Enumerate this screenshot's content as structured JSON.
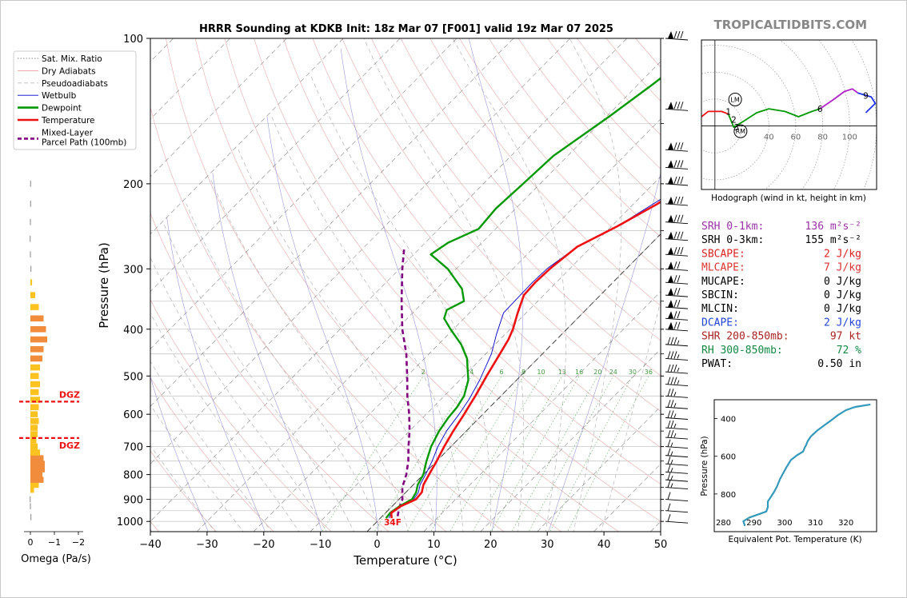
{
  "title": "HRRR Sounding at KDKB Init: 18z Mar 07 [F001] valid 19z Mar 07 2025",
  "brand": "TROPICALTIDBITS.COM",
  "skewt": {
    "xlabel": "Temperature (°C)",
    "ylabel": "Pressure (hPa)",
    "x_ticks": [
      -40,
      -30,
      -20,
      -10,
      0,
      10,
      20,
      30,
      40,
      50
    ],
    "y_ticks": [
      100,
      200,
      300,
      400,
      500,
      600,
      700,
      800,
      900,
      1000
    ],
    "xlim": [
      -40,
      50
    ],
    "ylim": [
      1050,
      100
    ],
    "surface_label": "34F",
    "mixing_ratio_labels": [
      "2",
      "4",
      "6",
      "8",
      "10",
      "13",
      "16",
      "20",
      "24",
      "30",
      "36"
    ]
  },
  "legend": [
    {
      "label": "Sat. Mix. Ratio",
      "color": "#888888",
      "style": "dotted"
    },
    {
      "label": "Dry Adiabats",
      "color": "#e8a0a0",
      "style": "solid"
    },
    {
      "label": "Pseudoadiabats",
      "color": "#bbbbbb",
      "style": "dashed"
    },
    {
      "label": "Wetbulb",
      "color": "#0000cc",
      "style": "solid"
    },
    {
      "label": "Dewpoint",
      "color": "#009900",
      "style": "solid"
    },
    {
      "label": "Temperature",
      "color": "#ee1111",
      "style": "solid"
    },
    {
      "label": "Mixed-Layer\nParcel Path (100mb)",
      "color": "#800080",
      "style": "dashed"
    }
  ],
  "omega": {
    "xlabel": "Omega (Pa/s)",
    "x_ticks": [
      "0",
      "−1",
      "−2"
    ],
    "dgz_label": "DGZ"
  },
  "hodograph": {
    "caption": "Hodograph (wind in kt, height in km)",
    "ring_labels": [
      "40",
      "60",
      "80",
      "100"
    ],
    "height_labels": [
      "1",
      "2",
      "3",
      "6",
      "9"
    ],
    "markers": [
      "LM",
      "RM"
    ]
  },
  "indices": [
    {
      "label": "SRH 0-1km:",
      "value": "136 m²s⁻²",
      "color": "#9b30a8"
    },
    {
      "label": "SRH 0-3km:",
      "value": "155 m²s⁻²",
      "color": "#000000"
    },
    {
      "label": "SBCAPE:",
      "value": "2 J/kg",
      "color": "#dd2222"
    },
    {
      "label": "MLCAPE:",
      "value": "7 J/kg",
      "color": "#dd3333"
    },
    {
      "label": "MUCAPE:",
      "value": "0 J/kg",
      "color": "#000000"
    },
    {
      "label": "SBCIN:",
      "value": "0 J/kg",
      "color": "#000000"
    },
    {
      "label": "MLCIN:",
      "value": "0 J/kg",
      "color": "#000000"
    },
    {
      "label": "DCAPE:",
      "value": "2 J/kg",
      "color": "#2244dd"
    },
    {
      "label": "SHR 200-850mb:",
      "value": "97 kt",
      "color": "#aa2222"
    },
    {
      "label": "RH 300-850mb:",
      "value": "72 %",
      "color": "#118844"
    },
    {
      "label": "PWAT:",
      "value": "0.50 in",
      "color": "#000000"
    }
  ],
  "theta_e": {
    "xlabel": "Equivalent Pot. Temperature (K)",
    "ylabel": "Pressure (hPa)",
    "x_ticks": [
      "280",
      "290",
      "300",
      "310",
      "320"
    ],
    "y_ticks": [
      "400",
      "600",
      "800"
    ]
  },
  "chart_data": [
    {
      "type": "line",
      "title": "HRRR Sounding at KDKB Init: 18z Mar 07 [F001] valid 19z Mar 07 2025",
      "xlabel": "Temperature (°C)",
      "ylabel": "Pressure (hPa)",
      "xlim": [
        -40,
        50
      ],
      "ylim": [
        1050,
        100
      ],
      "y_scale": "log",
      "grid": true,
      "legend_position": "top-left",
      "series": [
        {
          "name": "Temperature",
          "color": "#ee1111",
          "points": [
            [
              2.0,
              985
            ],
            [
              1.0,
              960
            ],
            [
              1.5,
              930
            ],
            [
              3.0,
              900
            ],
            [
              2.8,
              870
            ],
            [
              1.8,
              840
            ],
            [
              1.0,
              800
            ],
            [
              0.0,
              750
            ],
            [
              -1.2,
              700
            ],
            [
              -2.3,
              650
            ],
            [
              -3.3,
              600
            ],
            [
              -3.8,
              580
            ],
            [
              -4.5,
              550
            ],
            [
              -6.0,
              500
            ],
            [
              -7.5,
              450
            ],
            [
              -8.5,
              420
            ],
            [
              -9.5,
              400
            ],
            [
              -11.5,
              370
            ],
            [
              -13.5,
              340
            ],
            [
              -13.7,
              320
            ],
            [
              -13.5,
              300
            ],
            [
              -12.5,
              270
            ],
            [
              -9.0,
              245
            ],
            [
              -5.8,
              220
            ],
            [
              -3.8,
              200
            ],
            [
              -3.0,
              180
            ],
            [
              -2.5,
              160
            ],
            [
              -2.3,
              140
            ],
            [
              -1.8,
              125
            ],
            [
              -1.3,
              110
            ],
            [
              -0.5,
              100
            ]
          ]
        },
        {
          "name": "Dewpoint",
          "color": "#009900",
          "points": [
            [
              1.0,
              985
            ],
            [
              0.8,
              960
            ],
            [
              1.3,
              930
            ],
            [
              2.3,
              900
            ],
            [
              1.8,
              870
            ],
            [
              0.8,
              840
            ],
            [
              0.0,
              800
            ],
            [
              -1.8,
              750
            ],
            [
              -3.5,
              700
            ],
            [
              -4.8,
              650
            ],
            [
              -5.5,
              610
            ],
            [
              -5.8,
              580
            ],
            [
              -6.5,
              550
            ],
            [
              -8.5,
              510
            ],
            [
              -12.5,
              460
            ],
            [
              -16.0,
              430
            ],
            [
              -20.5,
              400
            ],
            [
              -23.5,
              380
            ],
            [
              -24.5,
              365
            ],
            [
              -23.0,
              350
            ],
            [
              -25.5,
              330
            ],
            [
              -31.5,
              300
            ],
            [
              -37.0,
              280
            ],
            [
              -36.0,
              265
            ],
            [
              -33.0,
              248
            ],
            [
              -33.5,
              225
            ],
            [
              -33.0,
              200
            ],
            [
              -32.5,
              175
            ],
            [
              -29.5,
              145
            ],
            [
              -27.5,
              125
            ],
            [
              -26.0,
              110
            ],
            [
              -25.0,
              100
            ]
          ]
        },
        {
          "name": "Wetbulb",
          "color": "#0000cc",
          "points": [
            [
              1.5,
              985
            ],
            [
              1.0,
              960
            ],
            [
              1.4,
              930
            ],
            [
              2.6,
              900
            ],
            [
              2.2,
              870
            ],
            [
              1.2,
              840
            ],
            [
              0.4,
              800
            ],
            [
              -0.8,
              750
            ],
            [
              -2.3,
              700
            ],
            [
              -3.5,
              650
            ],
            [
              -4.2,
              600
            ],
            [
              -5.0,
              560
            ],
            [
              -6.5,
              510
            ],
            [
              -9.0,
              450
            ],
            [
              -11.5,
              410
            ],
            [
              -14.0,
              370
            ],
            [
              -14.2,
              320
            ],
            [
              -14.0,
              300
            ],
            [
              -12.5,
              270
            ],
            [
              -9.0,
              245
            ],
            [
              -6.0,
              215
            ],
            [
              -5.0,
              195
            ],
            [
              -4.0,
              170
            ],
            [
              -2.5,
              140
            ],
            [
              -1.6,
              125
            ],
            [
              -1.0,
              110
            ],
            [
              -0.3,
              100
            ]
          ]
        },
        {
          "name": "Mixed-Layer\nParcel Path (100mb)",
          "color": "#800080",
          "points": [
            [
              2.7,
              975
            ],
            [
              1.6,
              940
            ],
            [
              0.6,
              900
            ],
            [
              -1.5,
              850
            ],
            [
              -3.0,
              800
            ],
            [
              -5.0,
              750
            ],
            [
              -7.5,
              700
            ],
            [
              -10.0,
              650
            ],
            [
              -13.0,
              600
            ],
            [
              -16.5,
              550
            ],
            [
              -20.0,
              500
            ],
            [
              -24.0,
              450
            ],
            [
              -29.0,
              400
            ],
            [
              -34.0,
              350
            ],
            [
              -39.5,
              300
            ],
            [
              -43.0,
              270
            ]
          ]
        }
      ],
      "wind_barbs_pressure": [
        100,
        140,
        170,
        185,
        200,
        220,
        240,
        260,
        280,
        300,
        320,
        340,
        360,
        380,
        400,
        430,
        460,
        490,
        520,
        550,
        580,
        610,
        640,
        670,
        700,
        730,
        760,
        790,
        820,
        850,
        900,
        950,
        1000
      ]
    },
    {
      "type": "bar",
      "title": "",
      "xlabel": "Omega (Pa/s)",
      "x_ticks": [
        "0",
        "−1",
        "−2"
      ],
      "xlim": [
        0.2,
        -2.2
      ],
      "ylim": [
        1050,
        100
      ],
      "categories_pressure_hPa": [
        980,
        930,
        900,
        860,
        840,
        820,
        800,
        780,
        760,
        740,
        720,
        700,
        680,
        660,
        640,
        620,
        600,
        580,
        560,
        540,
        520,
        500,
        480,
        460,
        440,
        420,
        400,
        380,
        360,
        340,
        320,
        300,
        280,
        260,
        240,
        220,
        200
      ],
      "values": [
        -0.03,
        0.02,
        0.03,
        -0.15,
        -0.35,
        -0.55,
        -0.5,
        -0.6,
        -0.6,
        -0.55,
        -0.4,
        -0.3,
        -0.25,
        -0.3,
        -0.3,
        -0.35,
        -0.3,
        -0.35,
        -0.4,
        -0.35,
        -0.4,
        -0.35,
        -0.4,
        -0.5,
        -0.55,
        -0.7,
        -0.65,
        -0.55,
        -0.35,
        -0.2,
        -0.07,
        -0.02,
        0.02,
        0.03,
        0.02,
        0.01,
        0.01
      ],
      "dgz_levels_hPa": [
        565,
        672
      ]
    },
    {
      "type": "line",
      "title": "Hodograph (wind in kt, height in km)",
      "xlabel": "",
      "ylabel": "",
      "xlim": [
        -10,
        120
      ],
      "ylim": [
        -48,
        65
      ],
      "grid": true,
      "series": [
        {
          "name": "0-1 km",
          "color": "#ee1111",
          "points": [
            [
              -10,
              7
            ],
            [
              -5,
              11
            ],
            [
              5,
              11
            ],
            [
              10,
              9
            ]
          ]
        },
        {
          "name": "1-3 km",
          "color": "#009900",
          "points": [
            [
              10,
              9
            ],
            [
              14,
              -1
            ],
            [
              22,
              4
            ]
          ]
        },
        {
          "name": "3-6 km",
          "color": "#009900",
          "points": [
            [
              22,
              4
            ],
            [
              31,
              10
            ],
            [
              40,
              13
            ],
            [
              52,
              11
            ],
            [
              62,
              7
            ],
            [
              72,
              11
            ],
            [
              78,
              13
            ]
          ]
        },
        {
          "name": "6-9 km",
          "color": "#b020c8",
          "points": [
            [
              78,
              13
            ],
            [
              88,
              20
            ],
            [
              96,
              26
            ],
            [
              102,
              28
            ],
            [
              106,
              25
            ]
          ]
        },
        {
          "name": "9+ km",
          "color": "#2233ee",
          "points": [
            [
              106,
              25
            ],
            [
              116,
              22
            ],
            [
              119,
              17
            ],
            [
              112,
              10
            ]
          ]
        }
      ],
      "height_marks_km": [
        {
          "label": "1",
          "x": 10,
          "y": 11
        },
        {
          "label": "2",
          "x": 14,
          "y": 5
        },
        {
          "label": "3",
          "x": 16,
          "y": -1
        },
        {
          "label": "6",
          "x": 78,
          "y": 13
        },
        {
          "label": "9",
          "x": 112,
          "y": 23
        }
      ],
      "storm_motion": [
        {
          "label": "LM",
          "x": 15,
          "y": 20
        },
        {
          "label": "RM",
          "x": 19,
          "y": -4
        }
      ]
    },
    {
      "type": "line",
      "title": "",
      "xlabel": "Equivalent Pot. Temperature (K)",
      "ylabel": "Pressure (hPa)",
      "xlim": [
        277,
        330
      ],
      "ylim": [
        1000,
        300
      ],
      "series": [
        {
          "name": "Theta-e",
          "color": "#3399bb",
          "points": [
            [
              287,
              970
            ],
            [
              286.5,
              945
            ],
            [
              288.5,
              925
            ],
            [
              292,
              905
            ],
            [
              294,
              893
            ],
            [
              294.5,
              870
            ],
            [
              294.5,
              840
            ],
            [
              295.5,
              815
            ],
            [
              296.5,
              790
            ],
            [
              297.5,
              760
            ],
            [
              298.5,
              720
            ],
            [
              299.5,
              690
            ],
            [
              300.5,
              660
            ],
            [
              302,
              620
            ],
            [
              304,
              595
            ],
            [
              306,
              575
            ],
            [
              306.5,
              555
            ],
            [
              307,
              540
            ],
            [
              307.5,
              520
            ],
            [
              308.5,
              495
            ],
            [
              310.5,
              465
            ],
            [
              313,
              435
            ],
            [
              315.5,
              405
            ],
            [
              317.5,
              380
            ],
            [
              320,
              355
            ],
            [
              323,
              338
            ],
            [
              328,
              325
            ]
          ]
        }
      ]
    }
  ]
}
